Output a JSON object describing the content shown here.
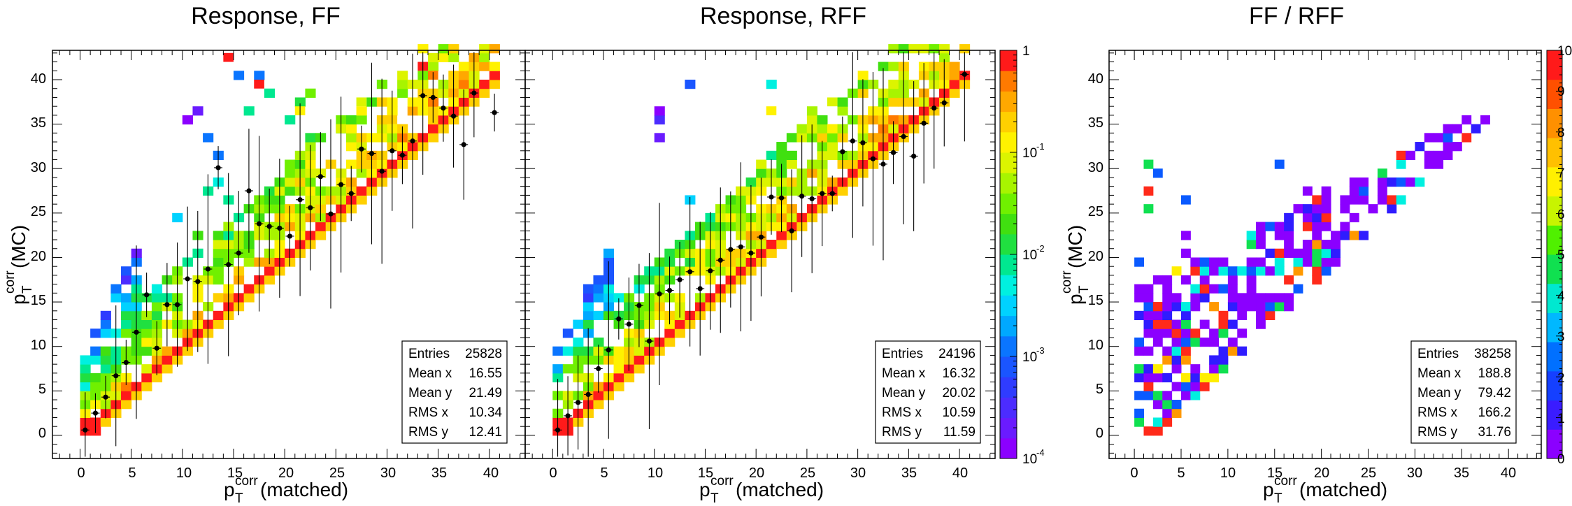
{
  "chart_data": [
    {
      "type": "heatmap",
      "title": "Response, FF",
      "xlabel_base": "p",
      "xlabel_sup": "corr",
      "xlabel_sub": "T",
      "xlabel_tail": "(matched)",
      "ylabel_base": "p",
      "ylabel_sup": "corr",
      "ylabel_sub": "T",
      "ylabel_tail": "(MC)",
      "xlim": [
        -2.7,
        43.5
      ],
      "ylim": [
        -2.6,
        43.3
      ],
      "x_ticks": [
        "0",
        "5",
        "10",
        "15",
        "20",
        "25",
        "30",
        "35",
        "40"
      ],
      "y_ticks": [
        "0",
        "5",
        "10",
        "15",
        "20",
        "25",
        "30",
        "35",
        "40"
      ],
      "color_scale": "log",
      "zlim": [
        0.0001,
        1
      ],
      "stats": [
        {
          "label": "Entries",
          "value": "25828"
        },
        {
          "label": "Mean x",
          "value": "16.55"
        },
        {
          "label": "Mean y",
          "value": "21.49"
        },
        {
          "label": "RMS x",
          "value": "10.34"
        },
        {
          "label": "RMS y",
          "value": "12.41"
        }
      ],
      "profile": [
        [
          0.5,
          0.6
        ],
        [
          1.5,
          2.5
        ],
        [
          2.5,
          4.3
        ],
        [
          3.5,
          6.7
        ],
        [
          4.5,
          8.2
        ],
        [
          5.5,
          11.6
        ],
        [
          6.5,
          15.8
        ],
        [
          7.5,
          9.8
        ],
        [
          8.5,
          14.7
        ],
        [
          9.5,
          14.7
        ],
        [
          10.5,
          17.6
        ],
        [
          11.5,
          17.3
        ],
        [
          12.5,
          18.7
        ],
        [
          13.5,
          30.1
        ],
        [
          14.5,
          19.2
        ],
        [
          15.5,
          20.5
        ],
        [
          16.5,
          27.5
        ],
        [
          17.5,
          23.8
        ],
        [
          18.5,
          23.5
        ],
        [
          19.5,
          23.3
        ],
        [
          20.5,
          22.4
        ],
        [
          21.5,
          26.5
        ],
        [
          22.5,
          25.6
        ],
        [
          23.5,
          29.1
        ],
        [
          24.5,
          24.9
        ],
        [
          25.5,
          28.2
        ],
        [
          26.5,
          27.2
        ],
        [
          27.5,
          32.2
        ],
        [
          28.5,
          31.7
        ],
        [
          29.5,
          29.7
        ],
        [
          30.5,
          32.0
        ],
        [
          31.5,
          31.5
        ],
        [
          32.5,
          33.1
        ],
        [
          33.5,
          38.2
        ],
        [
          34.5,
          38.0
        ],
        [
          35.5,
          36.8
        ],
        [
          36.5,
          35.9
        ],
        [
          37.5,
          32.7
        ],
        [
          38.5,
          38.5
        ],
        [
          40.5,
          36.3
        ]
      ]
    },
    {
      "type": "heatmap",
      "title": "Response, RFF",
      "xlabel_base": "p",
      "xlabel_sup": "corr",
      "xlabel_sub": "T",
      "xlabel_tail": "(matched)",
      "xlim": [
        -2.7,
        43.5
      ],
      "ylim": [
        -2.6,
        43.3
      ],
      "x_ticks": [
        "0",
        "5",
        "10",
        "15",
        "20",
        "25",
        "30",
        "35",
        "40"
      ],
      "color_scale": "log",
      "zlim": [
        0.0001,
        1
      ],
      "colorbar_ticks": [
        {
          "base": "1",
          "exp": ""
        },
        {
          "base": "10",
          "exp": "-1"
        },
        {
          "base": "10",
          "exp": "-2"
        },
        {
          "base": "10",
          "exp": "-3"
        },
        {
          "base": "10",
          "exp": "-4"
        }
      ],
      "stats": [
        {
          "label": "Entries",
          "value": "24196"
        },
        {
          "label": "Mean x",
          "value": "16.32"
        },
        {
          "label": "Mean y",
          "value": "20.02"
        },
        {
          "label": "RMS x",
          "value": "10.59"
        },
        {
          "label": "RMS y",
          "value": "11.59"
        }
      ],
      "profile": [
        [
          0.5,
          0.6
        ],
        [
          1.5,
          2.2
        ],
        [
          2.5,
          3.7
        ],
        [
          3.5,
          4.6
        ],
        [
          4.5,
          7.5
        ],
        [
          5.5,
          9.6
        ],
        [
          6.5,
          13.1
        ],
        [
          7.5,
          12.5
        ],
        [
          8.5,
          14.6
        ],
        [
          9.5,
          10.6
        ],
        [
          10.5,
          15.9
        ],
        [
          11.5,
          16.3
        ],
        [
          12.5,
          17.5
        ],
        [
          13.5,
          18.4
        ],
        [
          14.5,
          16.5
        ],
        [
          15.5,
          18.5
        ],
        [
          16.5,
          19.7
        ],
        [
          17.5,
          20.9
        ],
        [
          18.5,
          21.2
        ],
        [
          19.5,
          20.5
        ],
        [
          20.5,
          22.3
        ],
        [
          21.5,
          26.8
        ],
        [
          22.5,
          26.7
        ],
        [
          23.5,
          23.0
        ],
        [
          24.5,
          26.9
        ],
        [
          25.5,
          26.6
        ],
        [
          26.5,
          27.2
        ],
        [
          27.5,
          27.2
        ],
        [
          28.5,
          31.9
        ],
        [
          29.5,
          33.1
        ],
        [
          30.5,
          32.9
        ],
        [
          31.5,
          31.1
        ],
        [
          32.5,
          30.5
        ],
        [
          33.5,
          31.8
        ],
        [
          34.5,
          33.6
        ],
        [
          35.5,
          31.4
        ],
        [
          36.5,
          35.1
        ],
        [
          37.5,
          36.8
        ],
        [
          38.5,
          37.4
        ],
        [
          40.5,
          40.6
        ]
      ]
    },
    {
      "type": "heatmap",
      "title": "FF / RFF",
      "xlabel_base": "p",
      "xlabel_sup": "corr",
      "xlabel_sub": "T",
      "xlabel_tail": "(matched)",
      "ylabel_base": "p",
      "ylabel_sup": "corr",
      "ylabel_sub": "T",
      "ylabel_tail": "(MC)",
      "xlim": [
        -2.7,
        43.5
      ],
      "ylim": [
        -2.6,
        43.3
      ],
      "x_ticks": [
        "0",
        "5",
        "10",
        "15",
        "20",
        "25",
        "30",
        "35",
        "40"
      ],
      "y_ticks": [
        "0",
        "5",
        "10",
        "15",
        "20",
        "25",
        "30",
        "35",
        "40"
      ],
      "color_scale": "linear",
      "zlim": [
        0,
        10
      ],
      "colorbar_ticks": [
        "0",
        "1",
        "2",
        "3",
        "4",
        "5",
        "6",
        "7",
        "8",
        "9",
        "10"
      ],
      "stats": [
        {
          "label": "Entries",
          "value": "38258"
        },
        {
          "label": "Mean x",
          "value": "188.8"
        },
        {
          "label": "Mean y",
          "value": "79.42"
        },
        {
          "label": "RMS x",
          "value": "166.2"
        },
        {
          "label": "RMS y",
          "value": "31.76"
        }
      ]
    }
  ]
}
